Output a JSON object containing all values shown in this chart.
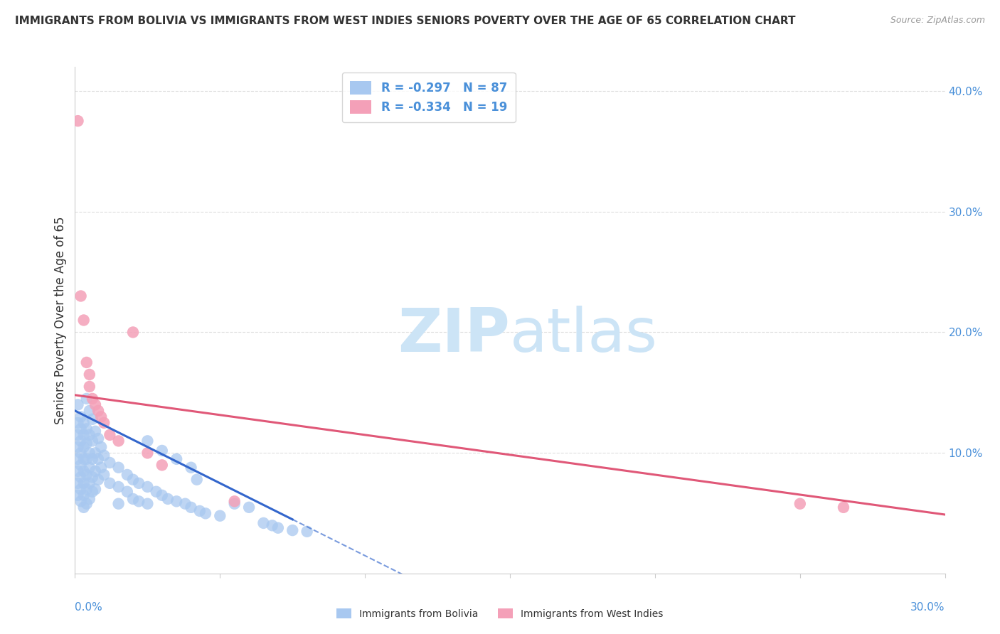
{
  "title": "IMMIGRANTS FROM BOLIVIA VS IMMIGRANTS FROM WEST INDIES SENIORS POVERTY OVER THE AGE OF 65 CORRELATION CHART",
  "source": "Source: ZipAtlas.com",
  "ylabel": "Seniors Poverty Over the Age of 65",
  "r_bolivia": -0.297,
  "n_bolivia": 87,
  "r_westindies": -0.334,
  "n_westindies": 19,
  "xlim": [
    0.0,
    0.3
  ],
  "ylim": [
    0.0,
    0.42
  ],
  "bolivia_color": "#a8c8f0",
  "westindies_color": "#f4a0b8",
  "bolivia_line_color": "#3366cc",
  "westindies_line_color": "#e05878",
  "bolivia_scatter": [
    [
      0.001,
      0.14
    ],
    [
      0.001,
      0.125
    ],
    [
      0.001,
      0.115
    ],
    [
      0.001,
      0.105
    ],
    [
      0.001,
      0.095
    ],
    [
      0.001,
      0.085
    ],
    [
      0.001,
      0.075
    ],
    [
      0.001,
      0.065
    ],
    [
      0.002,
      0.13
    ],
    [
      0.002,
      0.12
    ],
    [
      0.002,
      0.11
    ],
    [
      0.002,
      0.1
    ],
    [
      0.002,
      0.09
    ],
    [
      0.002,
      0.08
    ],
    [
      0.002,
      0.07
    ],
    [
      0.002,
      0.06
    ],
    [
      0.003,
      0.125
    ],
    [
      0.003,
      0.115
    ],
    [
      0.003,
      0.105
    ],
    [
      0.003,
      0.095
    ],
    [
      0.003,
      0.085
    ],
    [
      0.003,
      0.075
    ],
    [
      0.003,
      0.065
    ],
    [
      0.003,
      0.055
    ],
    [
      0.004,
      0.145
    ],
    [
      0.004,
      0.12
    ],
    [
      0.004,
      0.108
    ],
    [
      0.004,
      0.095
    ],
    [
      0.004,
      0.082
    ],
    [
      0.004,
      0.07
    ],
    [
      0.004,
      0.058
    ],
    [
      0.005,
      0.135
    ],
    [
      0.005,
      0.115
    ],
    [
      0.005,
      0.1
    ],
    [
      0.005,
      0.088
    ],
    [
      0.005,
      0.075
    ],
    [
      0.005,
      0.062
    ],
    [
      0.006,
      0.128
    ],
    [
      0.006,
      0.11
    ],
    [
      0.006,
      0.095
    ],
    [
      0.006,
      0.08
    ],
    [
      0.006,
      0.068
    ],
    [
      0.007,
      0.118
    ],
    [
      0.007,
      0.1
    ],
    [
      0.007,
      0.085
    ],
    [
      0.007,
      0.07
    ],
    [
      0.008,
      0.112
    ],
    [
      0.008,
      0.095
    ],
    [
      0.008,
      0.078
    ],
    [
      0.009,
      0.105
    ],
    [
      0.009,
      0.088
    ],
    [
      0.01,
      0.098
    ],
    [
      0.01,
      0.082
    ],
    [
      0.012,
      0.092
    ],
    [
      0.012,
      0.075
    ],
    [
      0.015,
      0.088
    ],
    [
      0.015,
      0.072
    ],
    [
      0.015,
      0.058
    ],
    [
      0.018,
      0.082
    ],
    [
      0.018,
      0.068
    ],
    [
      0.02,
      0.078
    ],
    [
      0.02,
      0.062
    ],
    [
      0.022,
      0.075
    ],
    [
      0.022,
      0.06
    ],
    [
      0.025,
      0.072
    ],
    [
      0.025,
      0.058
    ],
    [
      0.028,
      0.068
    ],
    [
      0.03,
      0.065
    ],
    [
      0.032,
      0.062
    ],
    [
      0.035,
      0.06
    ],
    [
      0.038,
      0.058
    ],
    [
      0.04,
      0.055
    ],
    [
      0.043,
      0.052
    ],
    [
      0.045,
      0.05
    ],
    [
      0.05,
      0.048
    ],
    [
      0.055,
      0.058
    ],
    [
      0.06,
      0.055
    ],
    [
      0.065,
      0.042
    ],
    [
      0.068,
      0.04
    ],
    [
      0.07,
      0.038
    ],
    [
      0.075,
      0.036
    ],
    [
      0.08,
      0.035
    ],
    [
      0.035,
      0.095
    ],
    [
      0.04,
      0.088
    ],
    [
      0.042,
      0.078
    ],
    [
      0.03,
      0.102
    ],
    [
      0.025,
      0.11
    ]
  ],
  "westindies_scatter": [
    [
      0.001,
      0.375
    ],
    [
      0.002,
      0.23
    ],
    [
      0.003,
      0.21
    ],
    [
      0.004,
      0.175
    ],
    [
      0.005,
      0.165
    ],
    [
      0.005,
      0.155
    ],
    [
      0.006,
      0.145
    ],
    [
      0.007,
      0.14
    ],
    [
      0.008,
      0.135
    ],
    [
      0.009,
      0.13
    ],
    [
      0.01,
      0.125
    ],
    [
      0.012,
      0.115
    ],
    [
      0.015,
      0.11
    ],
    [
      0.02,
      0.2
    ],
    [
      0.025,
      0.1
    ],
    [
      0.03,
      0.09
    ],
    [
      0.055,
      0.06
    ],
    [
      0.25,
      0.058
    ],
    [
      0.265,
      0.055
    ]
  ],
  "watermark_zip": "ZIP",
  "watermark_atlas": "atlas",
  "background_color": "#ffffff",
  "grid_color": "#dddddd",
  "axis_color": "#cccccc",
  "label_color": "#4a90d9",
  "text_color": "#333333",
  "legend_r_color": "#e05878",
  "title_fontsize": 11,
  "source_fontsize": 9,
  "axis_label_fontsize": 12,
  "tick_fontsize": 11,
  "legend_fontsize": 12
}
